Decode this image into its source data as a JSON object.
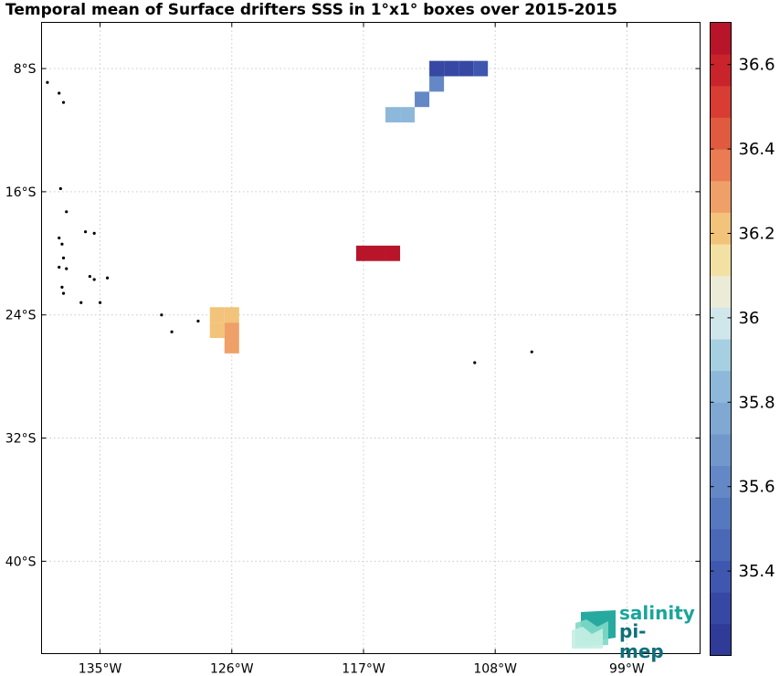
{
  "title": "Temporal mean of Surface drifters SSS in 1°x1° boxes over 2015-2015",
  "map": {
    "lon_range": [
      -139,
      -94
    ],
    "lat_range": [
      -46,
      -5
    ],
    "lat_ticks": [
      {
        "value": -8,
        "label": "8°S"
      },
      {
        "value": -16,
        "label": "16°S"
      },
      {
        "value": -24,
        "label": "24°S"
      },
      {
        "value": -32,
        "label": "32°S"
      },
      {
        "value": -40,
        "label": "40°S"
      }
    ],
    "lon_ticks": [
      {
        "value": -135,
        "label": "135°W"
      },
      {
        "value": -126,
        "label": "126°W"
      },
      {
        "value": -117,
        "label": "117°W"
      },
      {
        "value": -108,
        "label": "108°W"
      },
      {
        "value": -99,
        "label": "99°W"
      }
    ],
    "grid": true,
    "cells": [
      {
        "lon": -112,
        "lat": -8,
        "sss": 35.35
      },
      {
        "lon": -111,
        "lat": -8,
        "sss": 35.32
      },
      {
        "lon": -110,
        "lat": -8,
        "sss": 35.3
      },
      {
        "lon": -109,
        "lat": -8,
        "sss": 35.4
      },
      {
        "lon": -112,
        "lat": -9,
        "sss": 35.62
      },
      {
        "lon": -113,
        "lat": -10,
        "sss": 35.65
      },
      {
        "lon": -115,
        "lat": -11,
        "sss": 35.85
      },
      {
        "lon": -114,
        "lat": -11,
        "sss": 35.85
      },
      {
        "lon": -117,
        "lat": -20,
        "sss": 36.7
      },
      {
        "lon": -116,
        "lat": -20,
        "sss": 36.7
      },
      {
        "lon": -115,
        "lat": -20,
        "sss": 36.7
      },
      {
        "lon": -127,
        "lat": -24,
        "sss": 36.18
      },
      {
        "lon": -126,
        "lat": -24,
        "sss": 36.18
      },
      {
        "lon": -127,
        "lat": -25,
        "sss": 36.18
      },
      {
        "lon": -126,
        "lat": -25,
        "sss": 36.3
      },
      {
        "lon": -126,
        "lat": -26,
        "sss": 36.3
      }
    ],
    "islands": [
      {
        "lon": -138.6,
        "lat": -8.9
      },
      {
        "lon": -137.8,
        "lat": -9.6
      },
      {
        "lon": -137.5,
        "lat": -10.2
      },
      {
        "lon": -137.7,
        "lat": -15.8
      },
      {
        "lon": -137.3,
        "lat": -17.3
      },
      {
        "lon": -136.0,
        "lat": -18.6
      },
      {
        "lon": -135.4,
        "lat": -18.7
      },
      {
        "lon": -137.8,
        "lat": -19.0
      },
      {
        "lon": -137.6,
        "lat": -19.4
      },
      {
        "lon": -137.5,
        "lat": -20.3
      },
      {
        "lon": -137.8,
        "lat": -20.9
      },
      {
        "lon": -137.3,
        "lat": -21.0
      },
      {
        "lon": -135.7,
        "lat": -21.5
      },
      {
        "lon": -135.4,
        "lat": -21.7
      },
      {
        "lon": -134.5,
        "lat": -21.6
      },
      {
        "lon": -137.6,
        "lat": -22.2
      },
      {
        "lon": -137.5,
        "lat": -22.6
      },
      {
        "lon": -136.3,
        "lat": -23.2
      },
      {
        "lon": -135.0,
        "lat": -23.2
      },
      {
        "lon": -130.8,
        "lat": -24.0
      },
      {
        "lon": -130.1,
        "lat": -25.1
      },
      {
        "lon": -128.3,
        "lat": -24.4
      },
      {
        "lon": -109.4,
        "lat": -27.1
      },
      {
        "lon": -105.5,
        "lat": -26.4
      }
    ]
  },
  "colorbar": {
    "min": 35.2,
    "max": 36.7,
    "levels": [
      "#2f3b96",
      "#3648a3",
      "#3f57ae",
      "#4a68b6",
      "#5678be",
      "#6488c5",
      "#7298cb",
      "#7fa8d2",
      "#8db8d9",
      "#a6cfe1",
      "#cfe6ea",
      "#ebebd7",
      "#f3e1a3",
      "#f2c37a",
      "#ef9f68",
      "#ea7b53",
      "#e05a3f",
      "#d83c32",
      "#c9232b",
      "#b8152a"
    ],
    "ticks": [
      "35.4",
      "35.6",
      "35.8",
      "36",
      "36.2",
      "36.4",
      "36.6"
    ]
  },
  "logo": {
    "line1": "salinity",
    "line2": "pi-mep"
  }
}
